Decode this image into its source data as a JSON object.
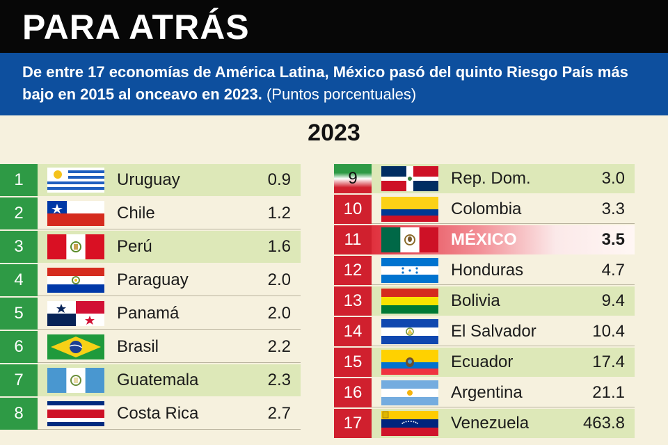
{
  "header": {
    "title": "PARA ATRÁS",
    "subtitle": "De entre 17 economías de América Latina, México pasó del quinto Riesgo País más bajo en 2015 al onceavo en 2023.",
    "units": "(Puntos porcentuales)",
    "year": "2023"
  },
  "chart_data": {
    "type": "table",
    "title": "PARA ATRÁS",
    "columns": [
      "rank",
      "country",
      "value"
    ],
    "rows": [
      {
        "rank": "1",
        "country": "Uruguay",
        "value": "0.9",
        "flag": "uruguay-flag"
      },
      {
        "rank": "2",
        "country": "Chile",
        "value": "1.2",
        "flag": "chile-flag"
      },
      {
        "rank": "3",
        "country": "Perú",
        "value": "1.6",
        "flag": "peru-flag"
      },
      {
        "rank": "4",
        "country": "Paraguay",
        "value": "2.0",
        "flag": "paraguay-flag"
      },
      {
        "rank": "5",
        "country": "Panamá",
        "value": "2.0",
        "flag": "panama-flag"
      },
      {
        "rank": "6",
        "country": "Brasil",
        "value": "2.2",
        "flag": "brazil-flag"
      },
      {
        "rank": "7",
        "country": "Guatemala",
        "value": "2.3",
        "flag": "guatemala-flag"
      },
      {
        "rank": "8",
        "country": "Costa Rica",
        "value": "2.7",
        "flag": "costa-rica-flag"
      },
      {
        "rank": "9",
        "country": "Rep. Dom.",
        "value": "3.0",
        "flag": "dominican-republic-flag"
      },
      {
        "rank": "10",
        "country": "Colombia",
        "value": "3.3",
        "flag": "colombia-flag"
      },
      {
        "rank": "11",
        "country": "MÉXICO",
        "value": "3.5",
        "flag": "mexico-flag"
      },
      {
        "rank": "12",
        "country": "Honduras",
        "value": "4.7",
        "flag": "honduras-flag"
      },
      {
        "rank": "13",
        "country": "Bolivia",
        "value": "9.4",
        "flag": "bolivia-flag"
      },
      {
        "rank": "14",
        "country": "El Salvador",
        "value": "10.4",
        "flag": "el-salvador-flag"
      },
      {
        "rank": "15",
        "country": "Ecuador",
        "value": "17.4",
        "flag": "ecuador-flag"
      },
      {
        "rank": "16",
        "country": "Argentina",
        "value": "21.1",
        "flag": "argentina-flag"
      },
      {
        "rank": "17",
        "country": "Venezuela",
        "value": "463.8",
        "flag": "venezuela-flag"
      }
    ]
  },
  "colors": {
    "title_bg": "#070707",
    "subtitle_bg": "#0d4f9e",
    "rank_green": "#2e9a45",
    "rank_red": "#d0202e",
    "row_shade": "#dde8b8",
    "highlight": "#e0303d"
  }
}
